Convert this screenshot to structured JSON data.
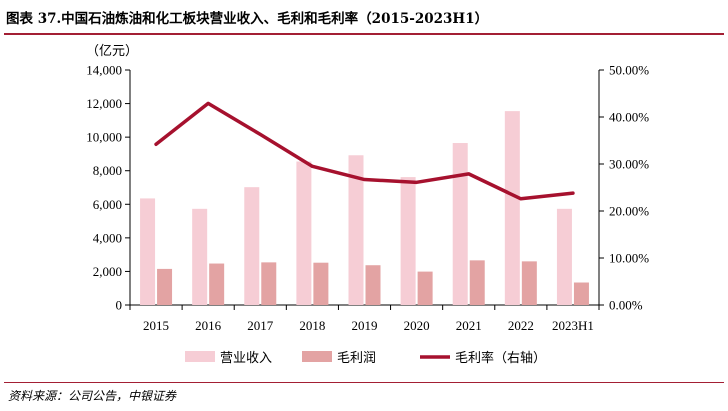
{
  "title": "图表 37.中国石油炼油和化工板块营业收入、毛利和毛利率（2015-2023H1）",
  "unit_label": "（亿元）",
  "source": "资料来源：公司公告，中银证券",
  "colors": {
    "revenue": "#f6cdd5",
    "gross_profit": "#e3a3a3",
    "margin": "#a6112e",
    "accent_rule": "#a31f34"
  },
  "chart_data": {
    "type": "bar",
    "categories": [
      "2015",
      "2016",
      "2017",
      "2018",
      "2019",
      "2020",
      "2021",
      "2022",
      "2023H1"
    ],
    "series": [
      {
        "name": "营业收入",
        "kind": "bar",
        "axis": "left",
        "values": [
          6350,
          5730,
          7020,
          8550,
          8920,
          7620,
          9650,
          11550,
          5730
        ]
      },
      {
        "name": "毛利润",
        "kind": "bar",
        "axis": "left",
        "values": [
          2150,
          2470,
          2540,
          2520,
          2370,
          1990,
          2660,
          2600,
          1340
        ]
      },
      {
        "name": "毛利率（右轴）",
        "kind": "line",
        "axis": "right",
        "values": [
          0.342,
          0.429,
          0.363,
          0.295,
          0.267,
          0.261,
          0.279,
          0.226,
          0.238
        ]
      }
    ],
    "y_left": {
      "min": 0,
      "max": 14000,
      "ticks": [
        0,
        2000,
        4000,
        6000,
        8000,
        10000,
        12000,
        14000
      ],
      "tick_labels": [
        "0",
        "2,000",
        "4,000",
        "6,000",
        "8,000",
        "10,000",
        "12,000",
        "14,000"
      ]
    },
    "y_right": {
      "min": 0,
      "max": 0.5,
      "ticks": [
        0,
        0.1,
        0.2,
        0.3,
        0.4,
        0.5
      ],
      "tick_labels": [
        "0.00%",
        "10.00%",
        "20.00%",
        "30.00%",
        "40.00%",
        "50.00%"
      ]
    },
    "legend": [
      {
        "label": "营业收入",
        "kind": "bar"
      },
      {
        "label": "毛利润",
        "kind": "bar"
      },
      {
        "label": "毛利率（右轴）",
        "kind": "line"
      }
    ],
    "legend_position": "bottom",
    "grid": false
  }
}
